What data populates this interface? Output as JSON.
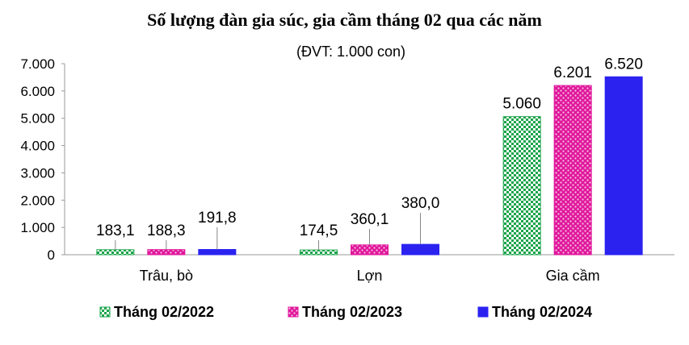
{
  "chart_data": {
    "type": "bar",
    "title": "Số lượng đàn gia súc, gia cầm tháng 02 qua các năm",
    "subtitle": "(ĐVT: 1.000 con)",
    "categories": [
      "Trâu, bò",
      "Lợn",
      "Gia cầm"
    ],
    "series": [
      {
        "name": "Tháng 02/2022",
        "values": [
          183.1,
          174.5,
          5060
        ],
        "labels": [
          "183,1",
          "174,5",
          "5.060"
        ],
        "color": "#1aa34a",
        "pattern": "checker"
      },
      {
        "name": "Tháng 02/2023",
        "values": [
          188.3,
          360.1,
          6201
        ],
        "labels": [
          "188,3",
          "360,1",
          "6.201"
        ],
        "color": "#e0179b",
        "pattern": "dots"
      },
      {
        "name": "Tháng 02/2024",
        "values": [
          191.8,
          380.0,
          6520
        ],
        "labels": [
          "191,8",
          "380,0",
          "6.520"
        ],
        "color": "#2b22f0",
        "pattern": "solid"
      }
    ],
    "ylim": [
      0,
      7000
    ],
    "yticks": [
      0,
      1000,
      2000,
      3000,
      4000,
      5000,
      6000,
      7000
    ],
    "ytick_labels": [
      "0",
      "1.000",
      "2.000",
      "3.000",
      "4.000",
      "5.000",
      "6.000",
      "7.000"
    ],
    "xlabel": "",
    "ylabel": "",
    "grid": false,
    "legend_position": "bottom"
  }
}
